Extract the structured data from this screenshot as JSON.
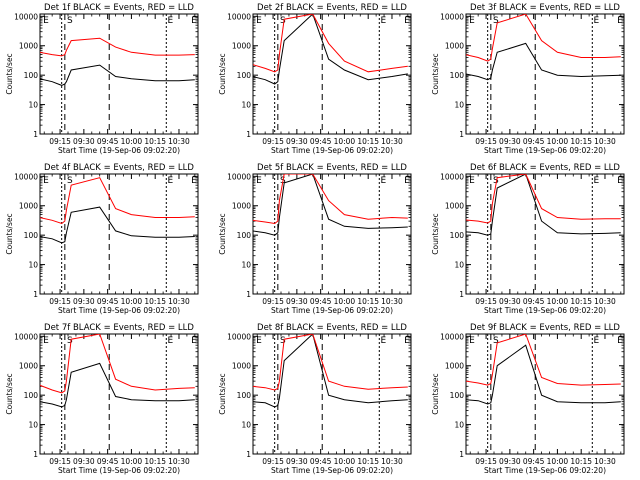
{
  "figure": {
    "ylabel": "Counts/sec",
    "xlabel": "Start Time (19-Sep-06 09:02:20)",
    "xticks": [
      "09:15",
      "09:30",
      "09:45",
      "10:00",
      "10:15",
      "10:30"
    ],
    "xrange": [
      "09:02:20",
      "10:42:00"
    ],
    "yticks": [
      "1",
      "10",
      "100",
      "1000",
      "10000"
    ],
    "ylim": [
      1,
      12000
    ],
    "yscale": "log",
    "interval_markers": [
      "E",
      "S",
      "E",
      "E"
    ],
    "colors": {
      "events": "#000000",
      "lld": "#ff0000",
      "axes": "#000000"
    }
  },
  "chart_data": [
    {
      "type": "line",
      "title": "Det 1f BLACK = Events, RED = LLD",
      "series": [
        {
          "name": "BLACK = Events",
          "x": [
            "09:02",
            "09:10",
            "09:16",
            "09:18",
            "09:19",
            "09:22",
            "09:40",
            "09:50",
            "10:00",
            "10:15",
            "10:30",
            "10:40"
          ],
          "values": [
            75,
            60,
            45,
            50,
            60,
            150,
            220,
            90,
            75,
            65,
            65,
            70
          ]
        },
        {
          "name": "RED = LLD",
          "x": [
            "09:02",
            "09:10",
            "09:16",
            "09:18",
            "09:19",
            "09:22",
            "09:40",
            "09:50",
            "10:00",
            "10:15",
            "10:30",
            "10:40"
          ],
          "values": [
            600,
            500,
            450,
            500,
            700,
            1500,
            1800,
            900,
            600,
            480,
            480,
            500
          ]
        }
      ]
    },
    {
      "type": "line",
      "title": "Det 2f BLACK = Events, RED = LLD",
      "series": [
        {
          "name": "BLACK = Events",
          "x": [
            "09:02",
            "09:10",
            "09:16",
            "09:18",
            "09:19",
            "09:22",
            "09:40",
            "09:50",
            "10:00",
            "10:15",
            "10:30",
            "10:40"
          ],
          "values": [
            90,
            70,
            50,
            60,
            150,
            1500,
            12000,
            350,
            150,
            70,
            90,
            110
          ]
        },
        {
          "name": "RED = LLD",
          "x": [
            "09:02",
            "09:10",
            "09:16",
            "09:18",
            "09:19",
            "09:22",
            "09:40",
            "09:50",
            "10:00",
            "10:15",
            "10:30",
            "10:40"
          ],
          "values": [
            230,
            170,
            130,
            150,
            500,
            8000,
            12000,
            1200,
            300,
            130,
            170,
            200
          ]
        }
      ]
    },
    {
      "type": "line",
      "title": "Det 3f BLACK = Events, RED = LLD",
      "series": [
        {
          "name": "BLACK = Events",
          "x": [
            "09:02",
            "09:10",
            "09:16",
            "09:18",
            "09:19",
            "09:22",
            "09:40",
            "09:50",
            "10:00",
            "10:15",
            "10:30",
            "10:40"
          ],
          "values": [
            110,
            90,
            70,
            80,
            150,
            600,
            1200,
            150,
            100,
            90,
            95,
            100
          ]
        },
        {
          "name": "RED = LLD",
          "x": [
            "09:02",
            "09:10",
            "09:16",
            "09:18",
            "09:19",
            "09:22",
            "09:40",
            "09:50",
            "10:00",
            "10:15",
            "10:30",
            "10:40"
          ],
          "values": [
            500,
            400,
            300,
            350,
            800,
            6000,
            12000,
            1500,
            600,
            400,
            400,
            420
          ]
        }
      ]
    },
    {
      "type": "line",
      "title": "Det 4f BLACK = Events, RED = LLD",
      "series": [
        {
          "name": "BLACK = Events",
          "x": [
            "09:02",
            "09:10",
            "09:16",
            "09:18",
            "09:19",
            "09:22",
            "09:40",
            "09:50",
            "10:00",
            "10:15",
            "10:30",
            "10:40"
          ],
          "values": [
            90,
            75,
            55,
            60,
            120,
            600,
            900,
            140,
            95,
            85,
            85,
            90
          ]
        },
        {
          "name": "RED = LLD",
          "x": [
            "09:02",
            "09:10",
            "09:16",
            "09:18",
            "09:19",
            "09:22",
            "09:40",
            "09:50",
            "10:00",
            "10:15",
            "10:30",
            "10:40"
          ],
          "values": [
            400,
            320,
            250,
            300,
            700,
            5000,
            9000,
            800,
            500,
            400,
            400,
            420
          ]
        }
      ]
    },
    {
      "type": "line",
      "title": "Det 5f BLACK = Events, RED = LLD",
      "series": [
        {
          "name": "BLACK = Events",
          "x": [
            "09:02",
            "09:10",
            "09:16",
            "09:18",
            "09:19",
            "09:22",
            "09:40",
            "09:50",
            "10:00",
            "10:15",
            "10:30",
            "10:40"
          ],
          "values": [
            140,
            120,
            100,
            120,
            400,
            6000,
            12000,
            350,
            200,
            170,
            180,
            190
          ]
        },
        {
          "name": "RED = LLD",
          "x": [
            "09:02",
            "09:10",
            "09:16",
            "09:18",
            "09:19",
            "09:22",
            "09:40",
            "09:50",
            "10:00",
            "10:15",
            "10:30",
            "10:40"
          ],
          "values": [
            320,
            280,
            250,
            300,
            1500,
            12000,
            12000,
            1500,
            500,
            350,
            400,
            380
          ]
        }
      ]
    },
    {
      "type": "line",
      "title": "Det 6f BLACK = Events, RED = LLD",
      "series": [
        {
          "name": "BLACK = Events",
          "x": [
            "09:02",
            "09:10",
            "09:16",
            "09:18",
            "09:19",
            "09:22",
            "09:40",
            "09:50",
            "10:00",
            "10:15",
            "10:30",
            "10:40"
          ],
          "values": [
            130,
            120,
            100,
            110,
            300,
            4000,
            12000,
            300,
            120,
            110,
            115,
            120
          ]
        },
        {
          "name": "RED = LLD",
          "x": [
            "09:02",
            "09:10",
            "09:16",
            "09:18",
            "09:19",
            "09:22",
            "09:40",
            "09:50",
            "10:00",
            "10:15",
            "10:30",
            "10:40"
          ],
          "values": [
            330,
            300,
            260,
            300,
            1200,
            9000,
            12000,
            800,
            400,
            350,
            360,
            360
          ]
        }
      ]
    },
    {
      "type": "line",
      "title": "Det 7f BLACK = Events, RED = LLD",
      "series": [
        {
          "name": "BLACK = Events",
          "x": [
            "09:02",
            "09:10",
            "09:16",
            "09:18",
            "09:19",
            "09:22",
            "09:40",
            "09:50",
            "10:00",
            "10:15",
            "10:30",
            "10:40"
          ],
          "values": [
            60,
            50,
            40,
            45,
            70,
            600,
            1200,
            90,
            70,
            65,
            65,
            70
          ]
        },
        {
          "name": "RED = LLD",
          "x": [
            "09:02",
            "09:10",
            "09:16",
            "09:18",
            "09:19",
            "09:22",
            "09:40",
            "09:50",
            "10:00",
            "10:15",
            "10:30",
            "10:40"
          ],
          "values": [
            220,
            150,
            120,
            140,
            300,
            8000,
            12000,
            350,
            200,
            150,
            170,
            180
          ]
        }
      ]
    },
    {
      "type": "line",
      "title": "Det 8f BLACK = Events, RED = LLD",
      "series": [
        {
          "name": "BLACK = Events",
          "x": [
            "09:02",
            "09:10",
            "09:16",
            "09:18",
            "09:19",
            "09:22",
            "09:40",
            "09:50",
            "10:00",
            "10:15",
            "10:30",
            "10:40"
          ],
          "values": [
            60,
            55,
            40,
            45,
            80,
            1500,
            12000,
            100,
            70,
            55,
            65,
            70
          ]
        },
        {
          "name": "RED = LLD",
          "x": [
            "09:02",
            "09:10",
            "09:16",
            "09:18",
            "09:19",
            "09:22",
            "09:40",
            "09:50",
            "10:00",
            "10:15",
            "10:30",
            "10:40"
          ],
          "values": [
            200,
            180,
            150,
            170,
            300,
            8000,
            12000,
            300,
            200,
            160,
            180,
            190
          ]
        }
      ]
    },
    {
      "type": "line",
      "title": "Det 9f BLACK = Events, RED = LLD",
      "series": [
        {
          "name": "BLACK = Events",
          "x": [
            "09:02",
            "09:10",
            "09:16",
            "09:18",
            "09:19",
            "09:22",
            "09:40",
            "09:50",
            "10:00",
            "10:15",
            "10:30",
            "10:40"
          ],
          "values": [
            70,
            65,
            50,
            55,
            100,
            1000,
            5000,
            100,
            60,
            55,
            55,
            60
          ]
        },
        {
          "name": "RED = LLD",
          "x": [
            "09:02",
            "09:10",
            "09:16",
            "09:18",
            "09:19",
            "09:22",
            "09:40",
            "09:50",
            "10:00",
            "10:15",
            "10:30",
            "10:40"
          ],
          "values": [
            300,
            260,
            220,
            250,
            500,
            6000,
            12000,
            400,
            250,
            220,
            230,
            240
          ]
        }
      ]
    }
  ]
}
